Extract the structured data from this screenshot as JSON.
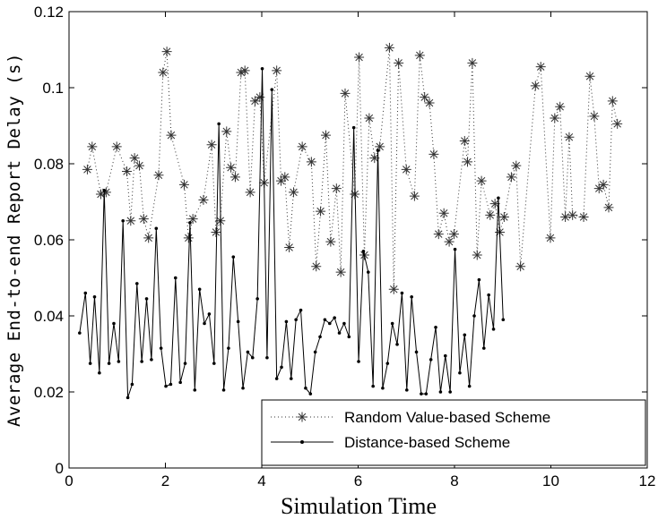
{
  "chart_data": {
    "type": "line",
    "title": "",
    "xlabel": "Simulation Time",
    "ylabel": "Average End-to-end Report Delay (s)",
    "xlim": [
      0,
      12
    ],
    "ylim": [
      0,
      0.12
    ],
    "x_ticks": [
      "0",
      "2",
      "4",
      "6",
      "8",
      "10",
      "12"
    ],
    "y_ticks": [
      "0",
      "0.02",
      "0.04",
      "0.06",
      "0.08",
      "0.1",
      "0.12"
    ],
    "grid": false,
    "legend_position": "bottom-right",
    "series": [
      {
        "name": "Random Value-based Scheme",
        "style": "dotted-star",
        "color": "#333333",
        "x": [
          0.38,
          0.48,
          0.66,
          0.77,
          0.99,
          1.2,
          1.28,
          1.36,
          1.46,
          1.55,
          1.65,
          1.86,
          1.95,
          2.03,
          2.12,
          2.39,
          2.48,
          2.57,
          2.79,
          2.96,
          3.05,
          3.14,
          3.27,
          3.36,
          3.45,
          3.57,
          3.65,
          3.76,
          3.86,
          3.96,
          4.05,
          4.31,
          4.4,
          4.48,
          4.57,
          4.66,
          4.84,
          5.03,
          5.13,
          5.22,
          5.33,
          5.43,
          5.55,
          5.64,
          5.73,
          5.93,
          6.02,
          6.13,
          6.23,
          6.34,
          6.45,
          6.65,
          6.74,
          6.84,
          7.0,
          7.17,
          7.28,
          7.38,
          7.48,
          7.57,
          7.67,
          7.78,
          7.89,
          7.99,
          8.21,
          8.27,
          8.37,
          8.47,
          8.56,
          8.74,
          8.84,
          8.94,
          9.03,
          9.18,
          9.28,
          9.37,
          9.68,
          9.79,
          9.99,
          10.08,
          10.19,
          10.3,
          10.38,
          10.45,
          10.68,
          10.81,
          10.9,
          11.0,
          11.09,
          11.2,
          11.28,
          11.38
        ],
        "y": [
          0.0785,
          0.0845,
          0.072,
          0.0725,
          0.0845,
          0.078,
          0.065,
          0.0815,
          0.0795,
          0.0655,
          0.0605,
          0.077,
          0.104,
          0.1095,
          0.0875,
          0.0745,
          0.0605,
          0.0655,
          0.0705,
          0.085,
          0.062,
          0.065,
          0.0885,
          0.079,
          0.0765,
          0.104,
          0.1045,
          0.0725,
          0.0965,
          0.0975,
          0.075,
          0.1045,
          0.0755,
          0.0765,
          0.058,
          0.0725,
          0.0845,
          0.0805,
          0.053,
          0.0675,
          0.0875,
          0.0595,
          0.0735,
          0.0515,
          0.0985,
          0.072,
          0.108,
          0.056,
          0.092,
          0.0815,
          0.0845,
          0.1105,
          0.047,
          0.1065,
          0.0785,
          0.0715,
          0.1085,
          0.0975,
          0.096,
          0.0825,
          0.0615,
          0.067,
          0.0595,
          0.0615,
          0.086,
          0.0805,
          0.1065,
          0.056,
          0.0755,
          0.0665,
          0.0695,
          0.062,
          0.066,
          0.0765,
          0.0795,
          0.053,
          0.1005,
          0.1055,
          0.0605,
          0.092,
          0.095,
          0.066,
          0.087,
          0.0665,
          0.066,
          0.103,
          0.0925,
          0.0735,
          0.0745,
          0.0685,
          0.0965,
          0.0905
        ]
      },
      {
        "name": "Distance-based Scheme",
        "style": "solid-dot",
        "color": "#000000",
        "x": [
          0.22,
          0.34,
          0.44,
          0.53,
          0.63,
          0.73,
          0.83,
          0.93,
          1.03,
          1.12,
          1.22,
          1.31,
          1.41,
          1.51,
          1.61,
          1.71,
          1.81,
          1.91,
          2.01,
          2.11,
          2.21,
          2.31,
          2.41,
          2.51,
          2.61,
          2.71,
          2.81,
          2.91,
          3.01,
          3.11,
          3.21,
          3.31,
          3.41,
          3.51,
          3.61,
          3.71,
          3.81,
          3.91,
          4.01,
          4.11,
          4.21,
          4.31,
          4.41,
          4.51,
          4.61,
          4.71,
          4.81,
          4.91,
          5.01,
          5.11,
          5.21,
          5.31,
          5.41,
          5.51,
          5.61,
          5.71,
          5.81,
          5.91,
          6.01,
          6.11,
          6.21,
          6.31,
          6.41,
          6.51,
          6.61,
          6.71,
          6.81,
          6.91,
          7.01,
          7.11,
          7.21,
          7.31,
          7.41,
          7.51,
          7.61,
          7.71,
          7.81,
          7.91,
          8.01,
          8.11,
          8.21,
          8.31,
          8.41,
          8.51,
          8.61,
          8.71,
          8.81,
          8.91,
          9.01
        ],
        "y": [
          0.0355,
          0.046,
          0.0275,
          0.045,
          0.025,
          0.073,
          0.0275,
          0.038,
          0.028,
          0.065,
          0.0185,
          0.022,
          0.0485,
          0.028,
          0.0445,
          0.0285,
          0.063,
          0.0315,
          0.0215,
          0.022,
          0.05,
          0.0225,
          0.0275,
          0.0645,
          0.0205,
          0.047,
          0.038,
          0.0405,
          0.0275,
          0.0905,
          0.0205,
          0.0315,
          0.0555,
          0.0385,
          0.021,
          0.0305,
          0.029,
          0.0445,
          0.105,
          0.029,
          0.0995,
          0.0235,
          0.0265,
          0.0385,
          0.0235,
          0.039,
          0.0415,
          0.021,
          0.0195,
          0.0305,
          0.0345,
          0.039,
          0.038,
          0.0395,
          0.0355,
          0.038,
          0.0345,
          0.0895,
          0.028,
          0.057,
          0.0515,
          0.0215,
          0.0835,
          0.021,
          0.0275,
          0.038,
          0.0325,
          0.046,
          0.0205,
          0.045,
          0.0305,
          0.0195,
          0.0195,
          0.0285,
          0.037,
          0.02,
          0.0295,
          0.02,
          0.0575,
          0.025,
          0.035,
          0.0215,
          0.04,
          0.0495,
          0.0315,
          0.0455,
          0.0365,
          0.071,
          0.039
        ]
      }
    ]
  }
}
